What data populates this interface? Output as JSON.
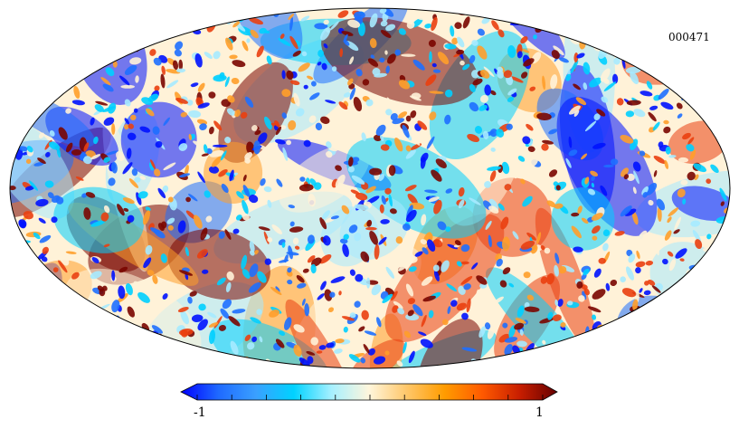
{
  "map": {
    "id": "000471",
    "projection": "mollweide",
    "colormap": "planck",
    "colorbar": {
      "min_label": "-1",
      "max_label": "1",
      "min": -1,
      "max": 1,
      "tick_count": 11,
      "colors": [
        "#0000ff",
        "#1f6aff",
        "#3aa0ff",
        "#00d2ff",
        "#a6f0ff",
        "#fff6dc",
        "#ffc76a",
        "#ff9c00",
        "#ff5a00",
        "#c81e00",
        "#650000"
      ]
    },
    "colors": {
      "deep_blue": "#0012ff",
      "mid_blue": "#1e6fff",
      "cyan": "#00cfff",
      "pale_cyan": "#a6eaff",
      "cream": "#fff2d8",
      "orange": "#ff9e2a",
      "red": "#ea3f10",
      "maroon": "#7a0600",
      "outline": "#000000"
    }
  }
}
